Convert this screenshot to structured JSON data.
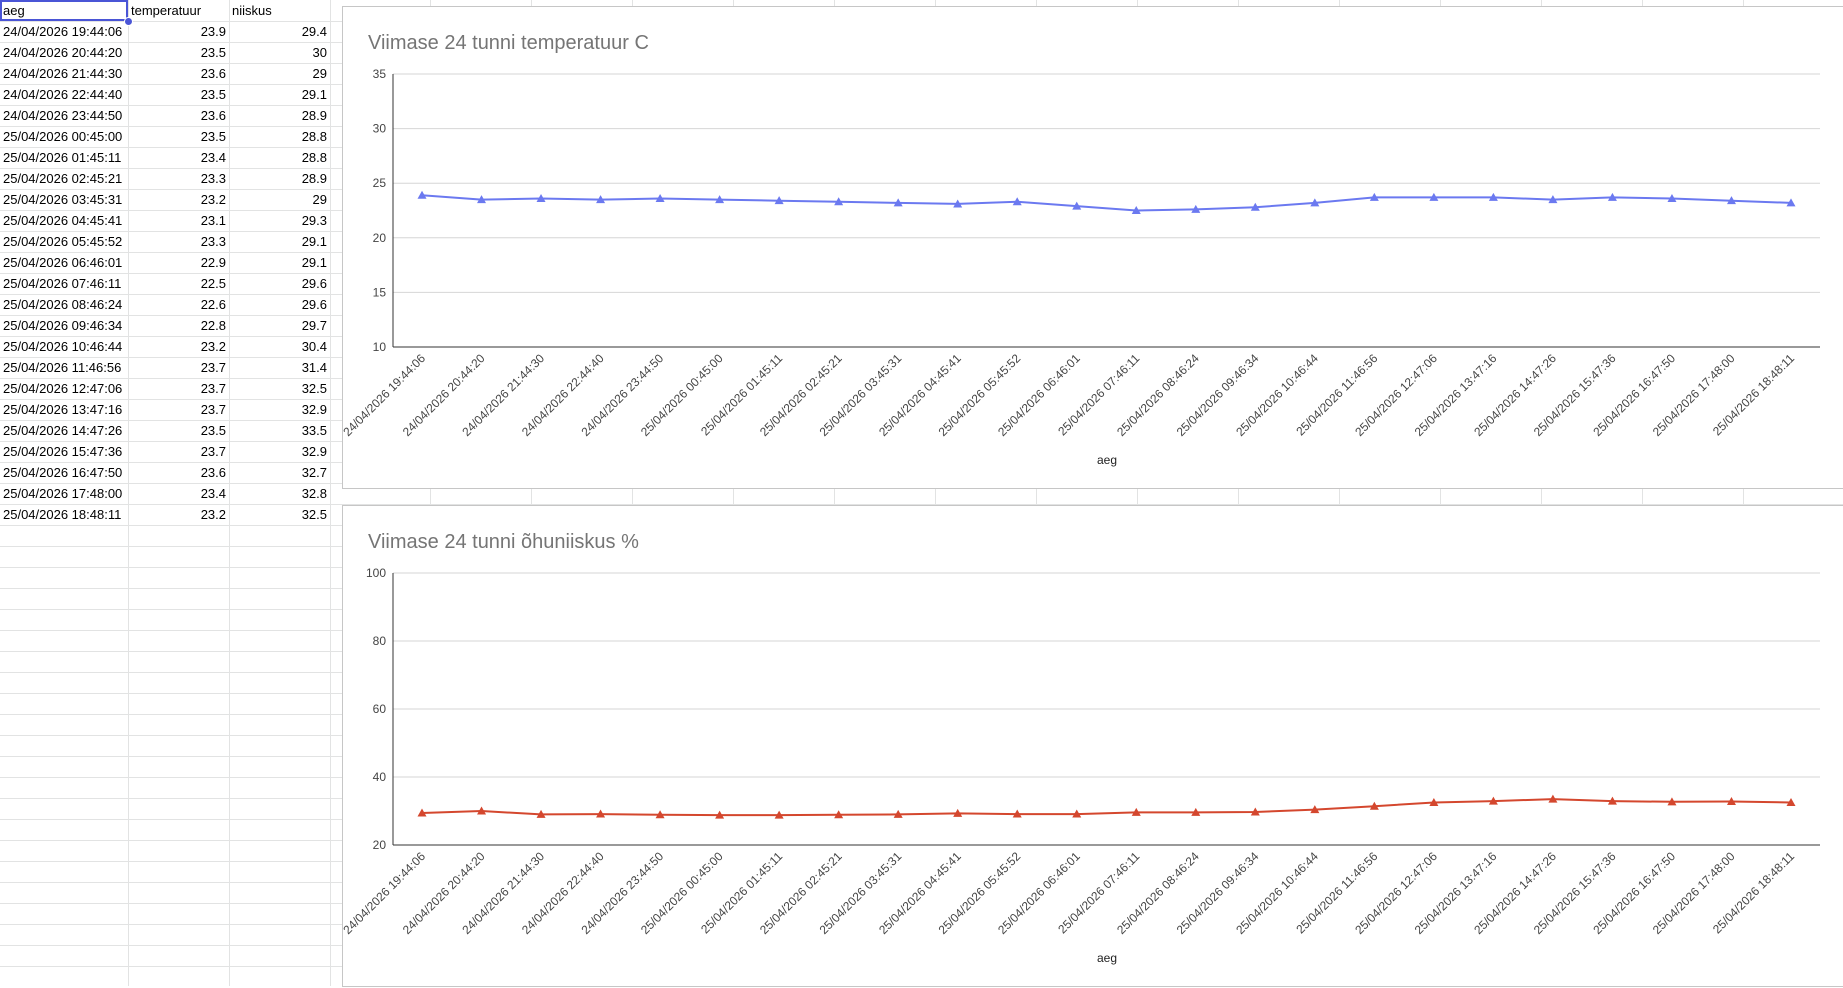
{
  "sheet": {
    "headers": [
      "aeg",
      "temperatuur",
      "niiskus"
    ],
    "rows": [
      [
        "24/04/2026 19:44:06",
        "23.9",
        "29.4"
      ],
      [
        "24/04/2026 20:44:20",
        "23.5",
        "30"
      ],
      [
        "24/04/2026 21:44:30",
        "23.6",
        "29"
      ],
      [
        "24/04/2026 22:44:40",
        "23.5",
        "29.1"
      ],
      [
        "24/04/2026 23:44:50",
        "23.6",
        "28.9"
      ],
      [
        "25/04/2026 00:45:00",
        "23.5",
        "28.8"
      ],
      [
        "25/04/2026 01:45:11",
        "23.4",
        "28.8"
      ],
      [
        "25/04/2026 02:45:21",
        "23.3",
        "28.9"
      ],
      [
        "25/04/2026 03:45:31",
        "23.2",
        "29"
      ],
      [
        "25/04/2026 04:45:41",
        "23.1",
        "29.3"
      ],
      [
        "25/04/2026 05:45:52",
        "23.3",
        "29.1"
      ],
      [
        "25/04/2026 06:46:01",
        "22.9",
        "29.1"
      ],
      [
        "25/04/2026 07:46:11",
        "22.5",
        "29.6"
      ],
      [
        "25/04/2026 08:46:24",
        "22.6",
        "29.6"
      ],
      [
        "25/04/2026 09:46:34",
        "22.8",
        "29.7"
      ],
      [
        "25/04/2026 10:46:44",
        "23.2",
        "30.4"
      ],
      [
        "25/04/2026 11:46:56",
        "23.7",
        "31.4"
      ],
      [
        "25/04/2026 12:47:06",
        "23.7",
        "32.5"
      ],
      [
        "25/04/2026 13:47:16",
        "23.7",
        "32.9"
      ],
      [
        "25/04/2026 14:47:26",
        "23.5",
        "33.5"
      ],
      [
        "25/04/2026 15:47:36",
        "23.7",
        "32.9"
      ],
      [
        "25/04/2026 16:47:50",
        "23.6",
        "32.7"
      ],
      [
        "25/04/2026 17:48:00",
        "23.4",
        "32.8"
      ],
      [
        "25/04/2026 18:48:11",
        "23.2",
        "32.5"
      ]
    ]
  },
  "chart_data": [
    {
      "type": "line",
      "title": "Viimase 24 tunni temperatuur C",
      "xlabel": "aeg",
      "ylabel": "",
      "ylim": [
        10,
        35
      ],
      "yticks": [
        10,
        15,
        20,
        25,
        30,
        35
      ],
      "grid": true,
      "color": "#6b79f0",
      "marker": "triangle",
      "x": [
        "24/04/2026 19:44:06",
        "24/04/2026 20:44:20",
        "24/04/2026 21:44:30",
        "24/04/2026 22:44:40",
        "24/04/2026 23:44:50",
        "25/04/2026 00:45:00",
        "25/04/2026 01:45:11",
        "25/04/2026 02:45:21",
        "25/04/2026 03:45:31",
        "25/04/2026 04:45:41",
        "25/04/2026 05:45:52",
        "25/04/2026 06:46:01",
        "25/04/2026 07:46:11",
        "25/04/2026 08:46:24",
        "25/04/2026 09:46:34",
        "25/04/2026 10:46:44",
        "25/04/2026 11:46:56",
        "25/04/2026 12:47:06",
        "25/04/2026 13:47:16",
        "25/04/2026 14:47:26",
        "25/04/2026 15:47:36",
        "25/04/2026 16:47:50",
        "25/04/2026 17:48:00",
        "25/04/2026 18:48:11"
      ],
      "values": [
        23.9,
        23.5,
        23.6,
        23.5,
        23.6,
        23.5,
        23.4,
        23.3,
        23.2,
        23.1,
        23.3,
        22.9,
        22.5,
        22.6,
        22.8,
        23.2,
        23.7,
        23.7,
        23.7,
        23.5,
        23.7,
        23.6,
        23.4,
        23.2
      ]
    },
    {
      "type": "line",
      "title": "Viimase 24 tunni õhuniiskus %",
      "xlabel": "aeg",
      "ylabel": "",
      "ylim": [
        20,
        100
      ],
      "yticks": [
        20,
        40,
        60,
        80,
        100
      ],
      "grid": true,
      "color": "#d4472e",
      "marker": "triangle",
      "x": [
        "24/04/2026 19:44:06",
        "24/04/2026 20:44:20",
        "24/04/2026 21:44:30",
        "24/04/2026 22:44:40",
        "24/04/2026 23:44:50",
        "25/04/2026 00:45:00",
        "25/04/2026 01:45:11",
        "25/04/2026 02:45:21",
        "25/04/2026 03:45:31",
        "25/04/2026 04:45:41",
        "25/04/2026 05:45:52",
        "25/04/2026 06:46:01",
        "25/04/2026 07:46:11",
        "25/04/2026 08:46:24",
        "25/04/2026 09:46:34",
        "25/04/2026 10:46:44",
        "25/04/2026 11:46:56",
        "25/04/2026 12:47:06",
        "25/04/2026 13:47:16",
        "25/04/2026 14:47:26",
        "25/04/2026 15:47:36",
        "25/04/2026 16:47:50",
        "25/04/2026 17:48:00",
        "25/04/2026 18:48:11"
      ],
      "values": [
        29.4,
        30,
        29,
        29.1,
        28.9,
        28.8,
        28.8,
        28.9,
        29,
        29.3,
        29.1,
        29.1,
        29.6,
        29.6,
        29.7,
        30.4,
        31.4,
        32.5,
        32.9,
        33.5,
        32.9,
        32.7,
        32.8,
        32.5
      ]
    }
  ]
}
